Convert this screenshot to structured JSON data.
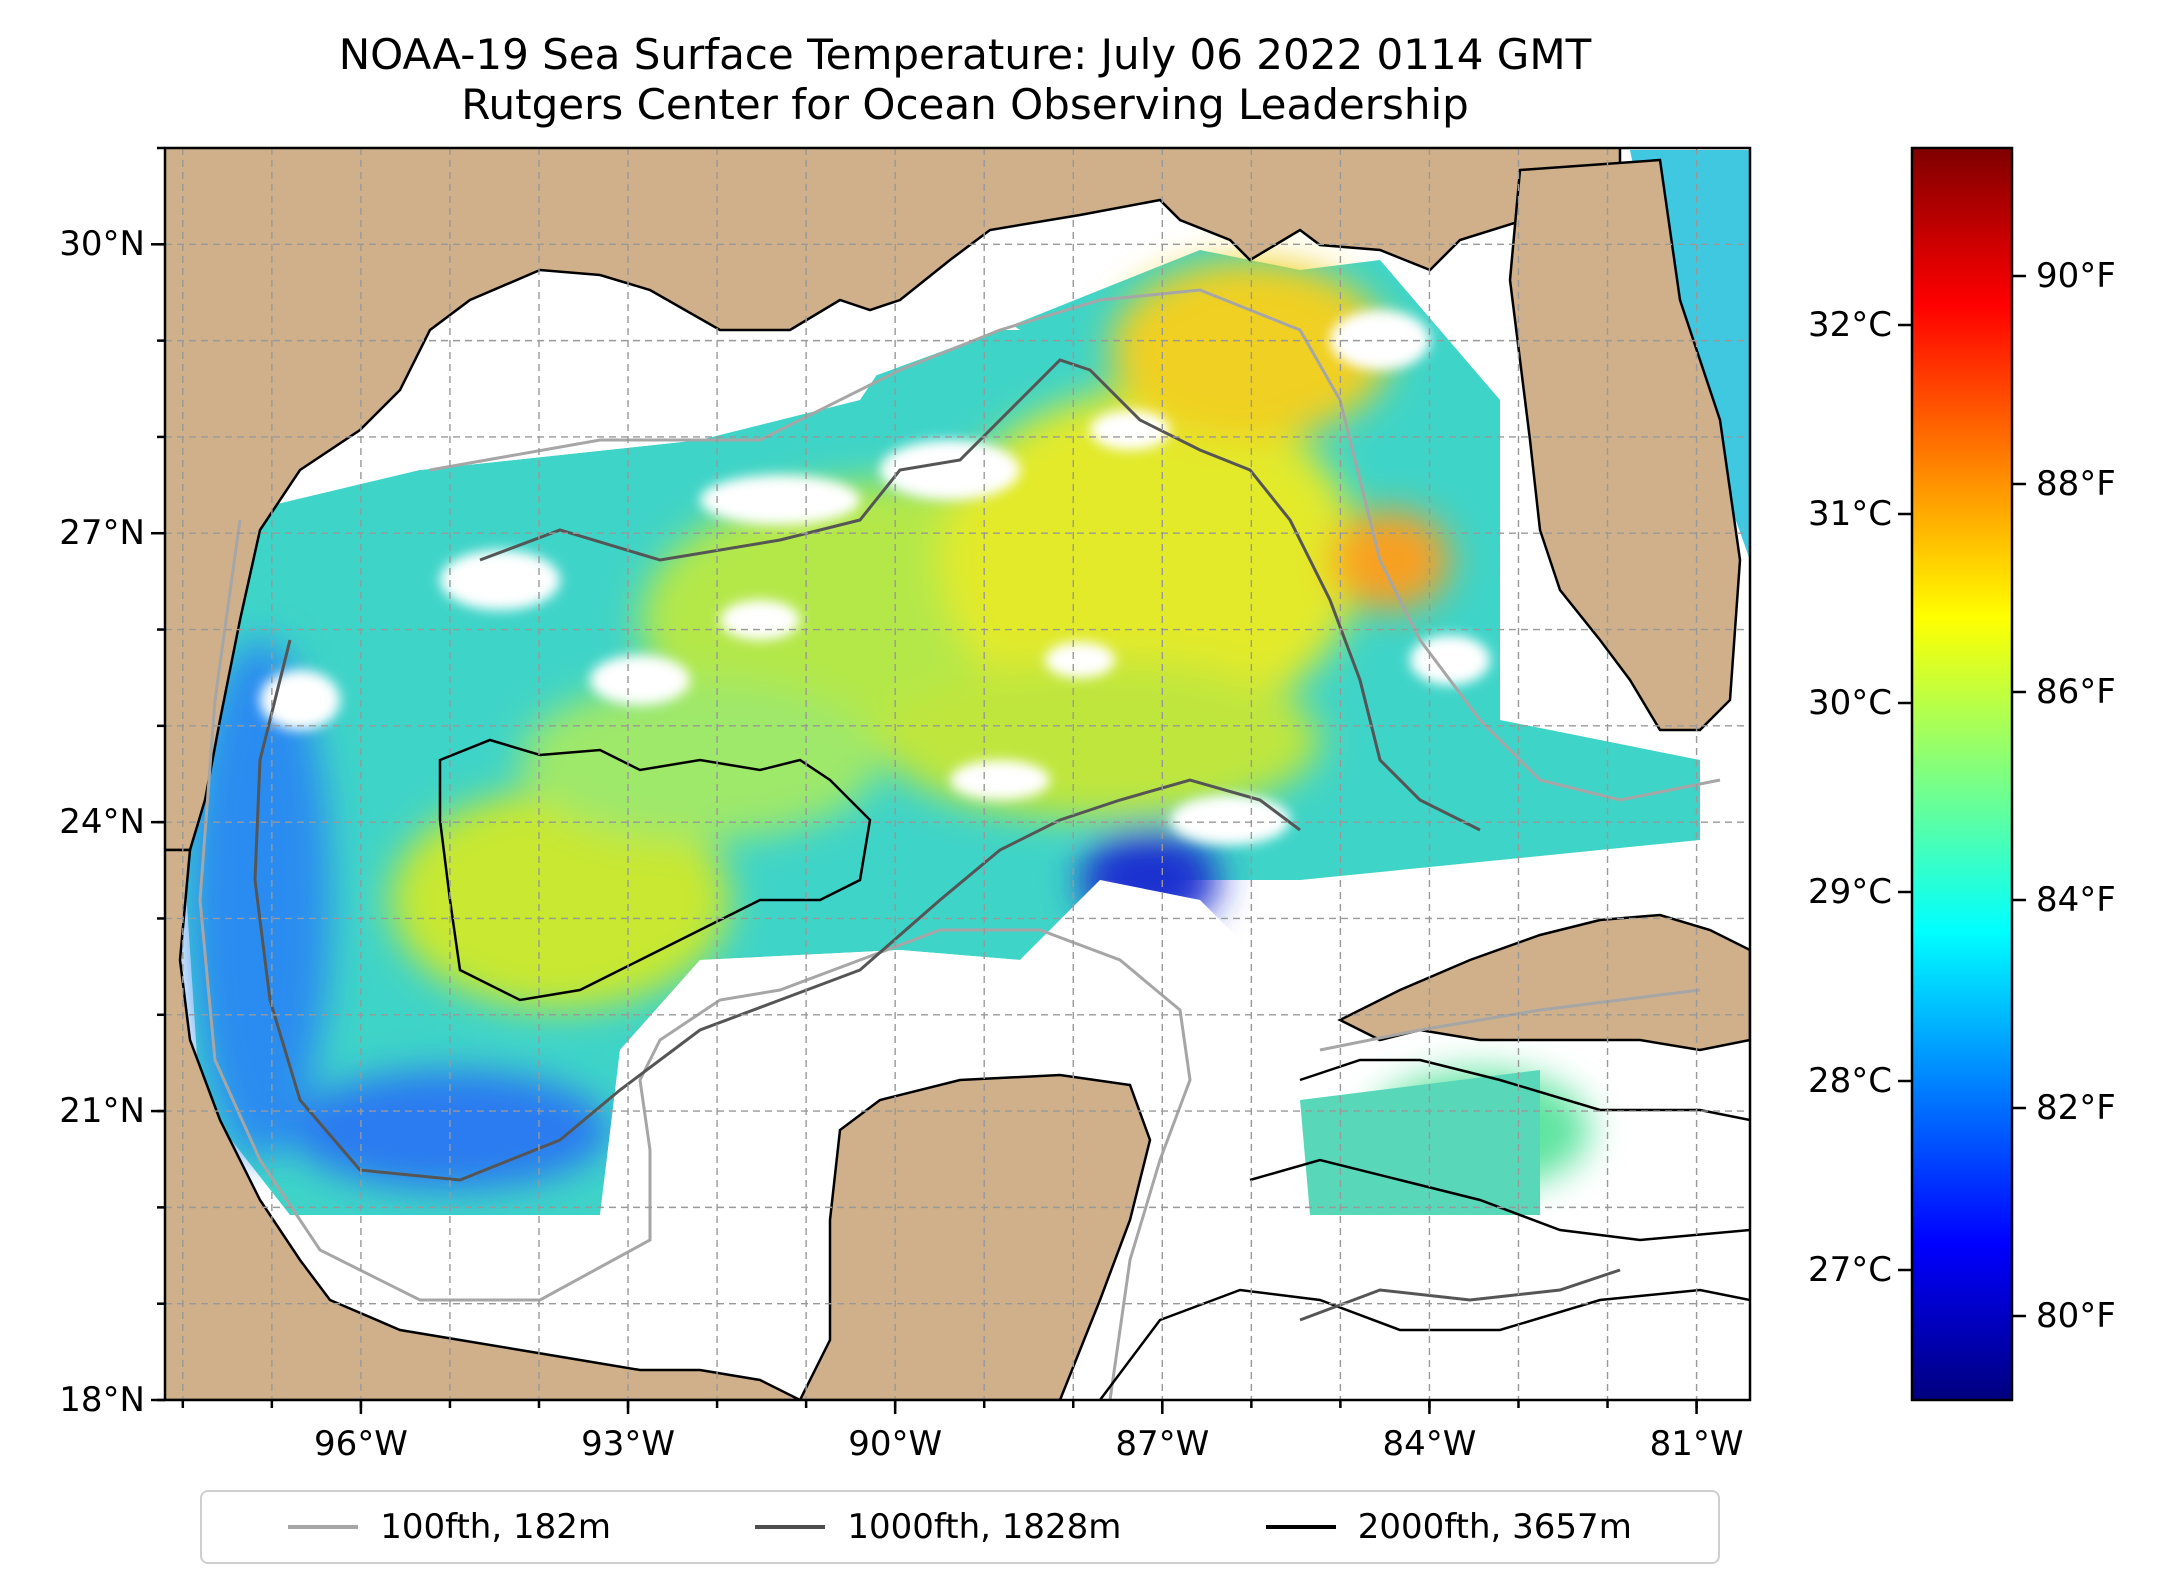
{
  "title_line1": "NOAA-19 Sea Surface Temperature: July 06 2022 0114 GMT",
  "title_line2": "Rutgers Center for Ocean Observing Leadership",
  "map": {
    "lon_range": [
      -98.2,
      -80.4
    ],
    "lat_range": [
      18,
      31
    ],
    "lat_ticks": [
      {
        "value": 18,
        "label": "18°N"
      },
      {
        "value": 21,
        "label": "21°N"
      },
      {
        "value": 24,
        "label": "24°N"
      },
      {
        "value": 27,
        "label": "27°N"
      },
      {
        "value": 30,
        "label": "30°N"
      }
    ],
    "lon_ticks": [
      {
        "value": -96,
        "label": "96°W"
      },
      {
        "value": -93,
        "label": "93°W"
      },
      {
        "value": -90,
        "label": "90°W"
      },
      {
        "value": -87,
        "label": "87°W"
      },
      {
        "value": -84,
        "label": "84°W"
      },
      {
        "value": -81,
        "label": "81°W"
      }
    ],
    "grid": "dashed",
    "land_color": "#cfb08a"
  },
  "colorbar": {
    "colormap": "jet",
    "celsius_ticks": [
      "27°C",
      "28°C",
      "29°C",
      "30°C",
      "31°C",
      "32°C"
    ],
    "fahrenheit_ticks": [
      "80°F",
      "82°F",
      "84°F",
      "86°F",
      "88°F",
      "90°F"
    ]
  },
  "legend": {
    "items": [
      {
        "label": "100fth, 182m",
        "color": "#a6a6a6"
      },
      {
        "label": "1000fth, 1828m",
        "color": "#4d4d4d"
      },
      {
        "label": "2000fth, 3657m",
        "color": "#000000"
      }
    ]
  }
}
